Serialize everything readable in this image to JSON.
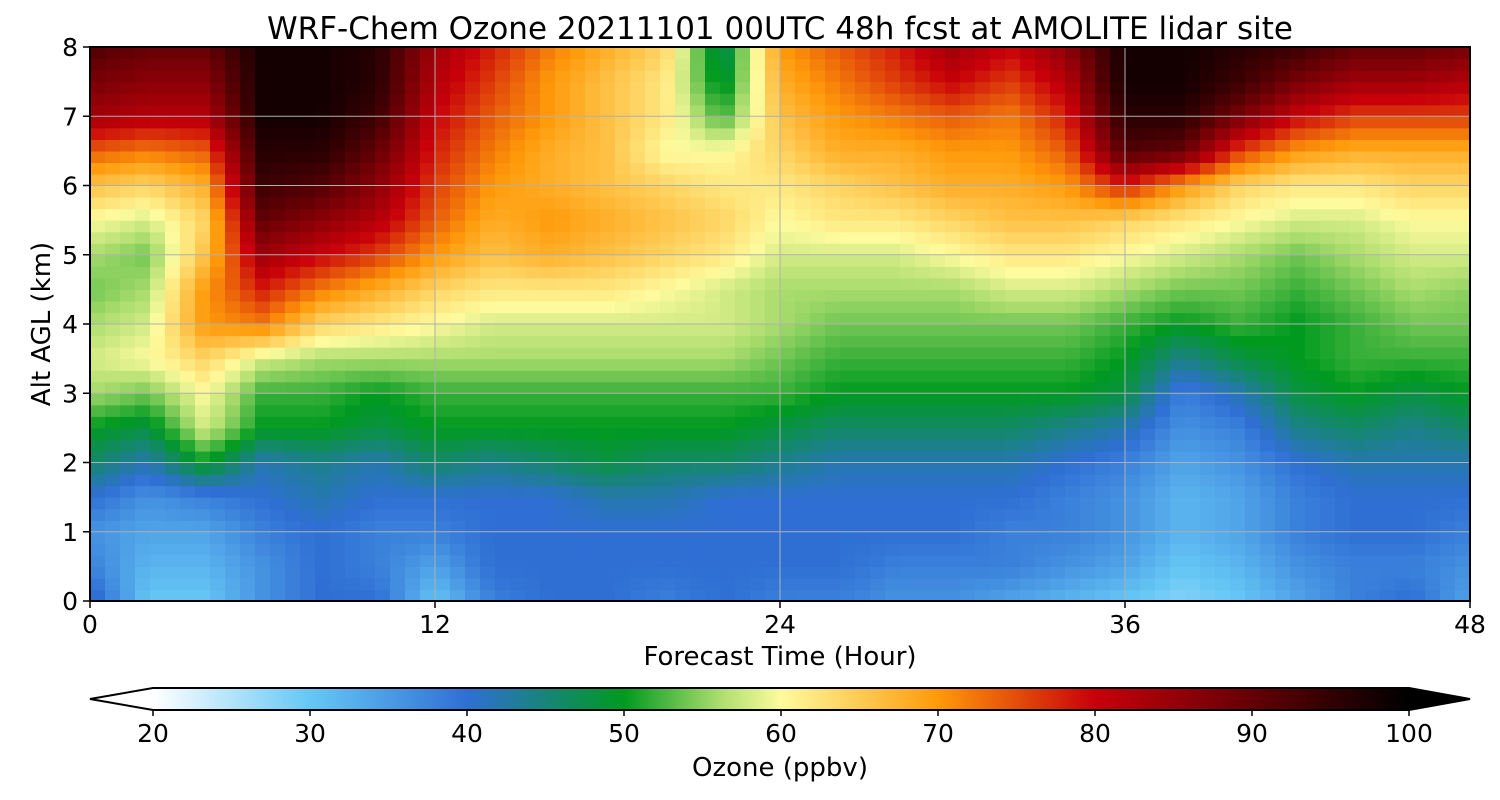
{
  "chart_data": {
    "type": "heatmap",
    "title": "WRF-Chem Ozone  20211101 00UTC 48h fcst at AMOLITE lidar site",
    "xlabel": "Forecast Time (Hour)",
    "ylabel": "Alt AGL (km)",
    "xlim": [
      0,
      48
    ],
    "ylim": [
      0,
      8
    ],
    "xticks": [
      "0",
      "12",
      "24",
      "36",
      "48"
    ],
    "yticks": [
      "0",
      "1",
      "2",
      "3",
      "4",
      "5",
      "6",
      "7",
      "8"
    ],
    "grid": true,
    "colorbar": {
      "label": "Ozone  (ppbv)",
      "range": [
        20,
        100
      ],
      "extend": "both",
      "ticks": [
        "20",
        "30",
        "40",
        "50",
        "60",
        "70",
        "80",
        "90",
        "100"
      ],
      "colors": [
        "#ffffff",
        "#66c7f5",
        "#2f6fd4",
        "#009a1f",
        "#a9dc6d",
        "#fefb9e",
        "#ff9a0a",
        "#c8000a",
        "#000000"
      ],
      "color_positions": [
        20,
        30,
        40,
        50,
        56,
        60,
        70,
        80,
        100
      ]
    },
    "x_hours": [
      0,
      2,
      4,
      6,
      8,
      10,
      12,
      14,
      16,
      18,
      20,
      22,
      24,
      26,
      28,
      30,
      32,
      34,
      36,
      38,
      40,
      42,
      44,
      46,
      48
    ],
    "alt_km": [
      0,
      0.5,
      1,
      1.5,
      2,
      2.5,
      3,
      3.5,
      4,
      4.5,
      5,
      5.5,
      6,
      6.5,
      7,
      7.5,
      8
    ],
    "ozone_ppbv": [
      [
        42,
        30,
        30,
        36,
        40,
        40,
        30,
        38,
        40,
        40,
        38,
        40,
        38,
        38,
        36,
        36,
        34,
        32,
        30,
        28,
        30,
        34,
        38,
        40,
        34
      ],
      [
        38,
        32,
        32,
        36,
        40,
        38,
        34,
        40,
        40,
        40,
        40,
        40,
        40,
        40,
        38,
        38,
        38,
        36,
        34,
        30,
        32,
        36,
        38,
        38,
        36
      ],
      [
        36,
        34,
        34,
        38,
        40,
        38,
        38,
        40,
        40,
        40,
        40,
        40,
        40,
        40,
        40,
        40,
        38,
        38,
        36,
        32,
        34,
        38,
        40,
        40,
        38
      ],
      [
        40,
        36,
        38,
        40,
        42,
        40,
        40,
        40,
        40,
        42,
        42,
        40,
        40,
        40,
        40,
        40,
        40,
        38,
        36,
        32,
        34,
        38,
        40,
        40,
        40
      ],
      [
        46,
        42,
        50,
        42,
        44,
        42,
        46,
        44,
        46,
        48,
        46,
        46,
        44,
        42,
        42,
        42,
        42,
        40,
        38,
        34,
        36,
        40,
        42,
        42,
        42
      ],
      [
        50,
        48,
        58,
        50,
        50,
        48,
        50,
        50,
        50,
        50,
        50,
        50,
        48,
        46,
        46,
        46,
        46,
        44,
        42,
        36,
        38,
        44,
        46,
        44,
        46
      ],
      [
        56,
        54,
        60,
        52,
        52,
        50,
        52,
        52,
        52,
        52,
        52,
        52,
        52,
        50,
        50,
        50,
        50,
        50,
        48,
        38,
        42,
        48,
        50,
        48,
        50
      ],
      [
        58,
        60,
        64,
        58,
        56,
        56,
        56,
        56,
        56,
        56,
        56,
        56,
        54,
        52,
        52,
        52,
        52,
        52,
        50,
        44,
        48,
        50,
        52,
        52,
        52
      ],
      [
        56,
        58,
        70,
        72,
        64,
        62,
        60,
        58,
        58,
        58,
        58,
        58,
        56,
        54,
        54,
        54,
        54,
        54,
        52,
        50,
        52,
        50,
        52,
        54,
        54
      ],
      [
        54,
        56,
        70,
        78,
        72,
        68,
        64,
        62,
        62,
        62,
        60,
        58,
        56,
        56,
        56,
        56,
        58,
        58,
        56,
        54,
        54,
        52,
        54,
        56,
        55
      ],
      [
        56,
        54,
        66,
        84,
        80,
        76,
        70,
        66,
        68,
        66,
        64,
        62,
        58,
        58,
        58,
        60,
        62,
        62,
        60,
        58,
        56,
        54,
        56,
        58,
        58
      ],
      [
        60,
        58,
        64,
        90,
        86,
        82,
        74,
        68,
        70,
        68,
        66,
        64,
        60,
        62,
        62,
        64,
        66,
        66,
        64,
        62,
        60,
        58,
        58,
        60,
        60
      ],
      [
        66,
        64,
        68,
        94,
        92,
        86,
        76,
        70,
        68,
        66,
        64,
        62,
        62,
        64,
        66,
        68,
        68,
        70,
        78,
        70,
        64,
        62,
        62,
        64,
        64
      ],
      [
        74,
        72,
        74,
        96,
        96,
        90,
        78,
        72,
        68,
        66,
        60,
        60,
        64,
        68,
        68,
        70,
        70,
        74,
        92,
        90,
        76,
        70,
        68,
        68,
        68
      ],
      [
        84,
        82,
        82,
        98,
        98,
        94,
        80,
        74,
        70,
        66,
        62,
        52,
        66,
        70,
        72,
        74,
        72,
        78,
        96,
        96,
        88,
        80,
        76,
        76,
        76
      ],
      [
        88,
        86,
        86,
        98,
        98,
        96,
        82,
        76,
        70,
        66,
        62,
        48,
        68,
        72,
        76,
        80,
        76,
        82,
        98,
        98,
        94,
        88,
        84,
        84,
        82
      ],
      [
        92,
        90,
        90,
        98,
        98,
        96,
        84,
        78,
        72,
        68,
        64,
        46,
        70,
        74,
        78,
        84,
        80,
        86,
        98,
        98,
        96,
        94,
        90,
        90,
        88
      ]
    ]
  }
}
